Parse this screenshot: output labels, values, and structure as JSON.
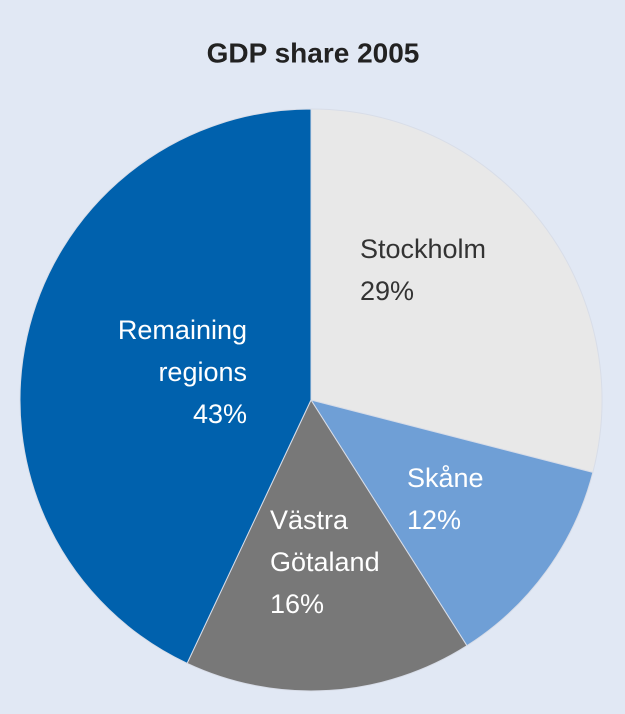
{
  "chart_data": {
    "type": "pie",
    "title": "GDP share 2005",
    "categories": [
      "Stockholm",
      "Skåne",
      "Västra Götaland",
      "Remaining regions"
    ],
    "values": [
      29,
      12,
      16,
      43
    ],
    "value_labels": [
      "29%",
      "12%",
      "16%",
      "43%"
    ],
    "colors": [
      "#e8e8e8",
      "#6f9fd6",
      "#787878",
      "#0061ad"
    ]
  }
}
